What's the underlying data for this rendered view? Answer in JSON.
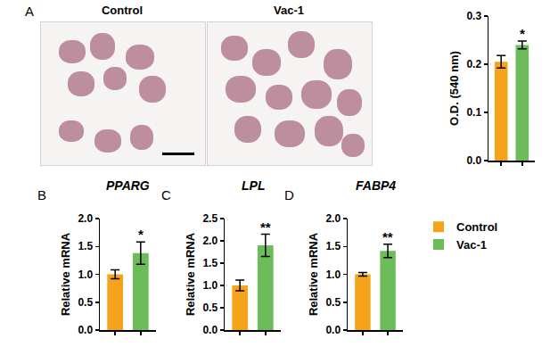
{
  "images": [
    {
      "label": "Control"
    },
    {
      "label": "Vac-1"
    }
  ],
  "chart_data": [
    {
      "type": "bar",
      "panel": "A",
      "ylabel": "O.D. (540 nm)",
      "categories": [
        null,
        null
      ],
      "series": [
        {
          "name": "Control",
          "color": "#f5a31a",
          "values": [
            0.205,
            null
          ],
          "error": [
            0.013,
            null
          ]
        },
        {
          "name": "Vac-1",
          "color": "#6cbd5a",
          "values": [
            null,
            0.24
          ],
          "error": [
            null,
            0.008
          ]
        }
      ],
      "ylim": [
        0,
        0.3
      ],
      "yticks": [
        {
          "value": 0,
          "label": "0.0"
        },
        0.1,
        0.2,
        0.3
      ],
      "annotations": [
        {
          "text": "*",
          "x": 1
        }
      ],
      "tick_labels": "y",
      "grid": false
    },
    {
      "type": "bar",
      "panel": "B",
      "title": "PPARG",
      "ylabel": "Relative mRNA",
      "categories": [
        null,
        null
      ],
      "series": [
        {
          "name": "Control",
          "color": "#f5a31a",
          "values": [
            1.0,
            null
          ],
          "error": [
            0.08,
            null
          ]
        },
        {
          "name": "Vac-1",
          "color": "#6cbd5a",
          "values": [
            null,
            1.38
          ],
          "error": [
            null,
            0.2
          ]
        }
      ],
      "ylim": [
        0,
        2.0
      ],
      "yticks": [
        {
          "value": 0,
          "label": "0.0"
        },
        0.5,
        {
          "value": 1,
          "label": "1.0"
        },
        1.5,
        {
          "value": 2,
          "label": "2.0"
        }
      ],
      "annotations": [
        {
          "text": "*",
          "x": 1
        }
      ],
      "tick_labels": "y",
      "grid": false
    },
    {
      "type": "bar",
      "panel": "C",
      "title": "LPL",
      "ylabel": "Relative mRNA",
      "categories": [
        null,
        null
      ],
      "series": [
        {
          "name": "Control",
          "color": "#f5a31a",
          "values": [
            1.0,
            null
          ],
          "error": [
            0.12,
            null
          ]
        },
        {
          "name": "Vac-1",
          "color": "#6cbd5a",
          "values": [
            null,
            1.9
          ],
          "error": [
            null,
            0.25
          ]
        }
      ],
      "ylim": [
        0,
        2.5
      ],
      "yticks": [
        {
          "value": 0,
          "label": "0.0"
        },
        0.5,
        {
          "value": 1,
          "label": "1.0"
        },
        1.5,
        {
          "value": 2,
          "label": "2.0"
        },
        2.5
      ],
      "annotations": [
        {
          "text": "**",
          "x": 1
        }
      ],
      "tick_labels": "y",
      "grid": false
    },
    {
      "type": "bar",
      "panel": "D",
      "title": "FABP4",
      "ylabel": "Relative mRNA",
      "categories": [
        null,
        null
      ],
      "series": [
        {
          "name": "Control",
          "color": "#f5a31a",
          "values": [
            1.0,
            null
          ],
          "error": [
            0.03,
            null
          ]
        },
        {
          "name": "Vac-1",
          "color": "#6cbd5a",
          "values": [
            null,
            1.42
          ],
          "error": [
            null,
            0.12
          ]
        }
      ],
      "ylim": [
        0,
        2.0
      ],
      "yticks": [
        {
          "value": 0,
          "label": "0.0"
        },
        0.5,
        {
          "value": 1,
          "label": "1.0"
        },
        1.5,
        {
          "value": 2,
          "label": "2.0"
        }
      ],
      "annotations": [
        {
          "text": "**",
          "x": 1
        }
      ],
      "tick_labels": "y",
      "grid": false,
      "legend": "right"
    }
  ]
}
